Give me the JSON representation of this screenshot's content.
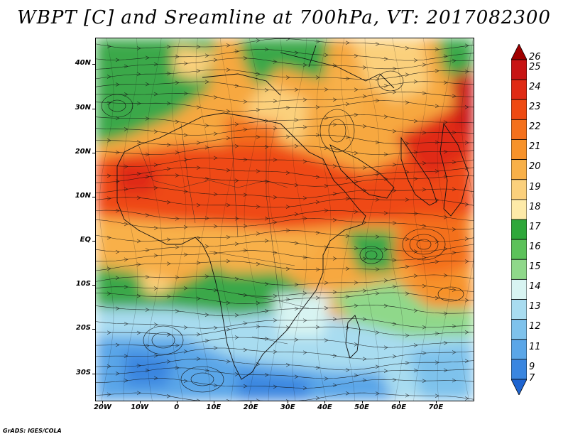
{
  "title": "WBPT [C] and Sreamline at 700hPa, VT: 2017082300",
  "map": {
    "variable": "Wet-bulb potential temperature (WBPT)",
    "unit": "C",
    "level": "700hPa",
    "valid_time": "2017082300",
    "lon_range": [
      -22,
      80
    ],
    "lat_range": [
      -36,
      46
    ],
    "lat_labels": [
      {
        "value": 40,
        "text": "40N"
      },
      {
        "value": 30,
        "text": "30N"
      },
      {
        "value": 20,
        "text": "20N"
      },
      {
        "value": 10,
        "text": "10N"
      },
      {
        "value": 0,
        "text": "EQ"
      },
      {
        "value": -10,
        "text": "10S"
      },
      {
        "value": -20,
        "text": "20S"
      },
      {
        "value": -30,
        "text": "30S"
      }
    ],
    "lon_labels": [
      {
        "value": -20,
        "text": "20W"
      },
      {
        "value": -10,
        "text": "10W"
      },
      {
        "value": 0,
        "text": "0"
      },
      {
        "value": 10,
        "text": "10E"
      },
      {
        "value": 20,
        "text": "20E"
      },
      {
        "value": 30,
        "text": "30E"
      },
      {
        "value": 40,
        "text": "40E"
      },
      {
        "value": 50,
        "text": "50E"
      },
      {
        "value": 60,
        "text": "60E"
      },
      {
        "value": 70,
        "text": "70E"
      }
    ]
  },
  "colorbar": {
    "labels": [
      "26",
      "25",
      "24",
      "23",
      "22",
      "21",
      "20",
      "19",
      "18",
      "17",
      "16",
      "15",
      "14",
      "13",
      "12",
      "11",
      "9",
      "7"
    ],
    "colors": [
      "#a00000",
      "#c81414",
      "#e02a14",
      "#ef4a12",
      "#f4701c",
      "#f7922a",
      "#f8b048",
      "#fbd07c",
      "#fdeaa8",
      "#2ea83a",
      "#5cc25a",
      "#8fd88a",
      "#d8f4f2",
      "#a8dcf0",
      "#7ec2ec",
      "#5aa6e8",
      "#3a86e0",
      "#1e64d0"
    ]
  },
  "credit": "GrADS: IGES/COLA"
}
